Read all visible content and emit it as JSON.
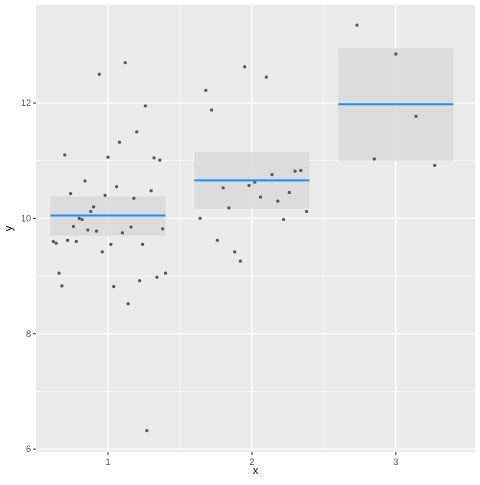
{
  "chart_data": {
    "type": "scatter",
    "xlabel": "x",
    "ylabel": "y",
    "xlim": [
      0.5,
      3.55
    ],
    "ylim": [
      5.95,
      13.7
    ],
    "x_ticks": [
      1,
      2,
      3
    ],
    "x_tick_labels": [
      "1",
      "2",
      "3"
    ],
    "y_ticks": [
      6,
      8,
      10,
      12
    ],
    "y_tick_labels": [
      "6",
      "8",
      "10",
      "12"
    ],
    "grid": true,
    "background": "#ebebeb",
    "grid_color": "#ffffff",
    "point_color": "#595959",
    "line_color": "#1f8ff2",
    "band_color": "#d9d9d9",
    "groups": [
      {
        "x": 1,
        "mean": 10.05,
        "ci_low": 9.7,
        "ci_high": 10.38,
        "x_start": 0.6,
        "x_end": 1.4
      },
      {
        "x": 2,
        "mean": 10.66,
        "ci_low": 10.17,
        "ci_high": 11.15,
        "x_start": 1.6,
        "x_end": 2.4
      },
      {
        "x": 3,
        "mean": 11.98,
        "ci_low": 11.0,
        "ci_high": 12.95,
        "x_start": 2.6,
        "x_end": 3.4
      }
    ],
    "points": [
      {
        "x": 0.62,
        "y": 9.6
      },
      {
        "x": 0.64,
        "y": 9.57
      },
      {
        "x": 0.66,
        "y": 9.05
      },
      {
        "x": 0.68,
        "y": 8.83
      },
      {
        "x": 0.7,
        "y": 11.1
      },
      {
        "x": 0.72,
        "y": 9.62
      },
      {
        "x": 0.74,
        "y": 10.43
      },
      {
        "x": 0.76,
        "y": 9.86
      },
      {
        "x": 0.78,
        "y": 9.6
      },
      {
        "x": 0.8,
        "y": 10.0
      },
      {
        "x": 0.82,
        "y": 9.98
      },
      {
        "x": 0.84,
        "y": 10.65
      },
      {
        "x": 0.86,
        "y": 9.8
      },
      {
        "x": 0.88,
        "y": 10.12
      },
      {
        "x": 0.9,
        "y": 10.2
      },
      {
        "x": 0.92,
        "y": 9.78
      },
      {
        "x": 0.94,
        "y": 12.5
      },
      {
        "x": 0.96,
        "y": 9.42
      },
      {
        "x": 0.98,
        "y": 10.4
      },
      {
        "x": 1.0,
        "y": 11.06
      },
      {
        "x": 1.02,
        "y": 9.55
      },
      {
        "x": 1.04,
        "y": 8.82
      },
      {
        "x": 1.06,
        "y": 10.55
      },
      {
        "x": 1.08,
        "y": 11.32
      },
      {
        "x": 1.1,
        "y": 9.75
      },
      {
        "x": 1.12,
        "y": 12.7
      },
      {
        "x": 1.14,
        "y": 8.52
      },
      {
        "x": 1.16,
        "y": 9.85
      },
      {
        "x": 1.18,
        "y": 10.35
      },
      {
        "x": 1.2,
        "y": 11.5
      },
      {
        "x": 1.22,
        "y": 8.92
      },
      {
        "x": 1.24,
        "y": 9.55
      },
      {
        "x": 1.26,
        "y": 11.95
      },
      {
        "x": 1.27,
        "y": 6.32
      },
      {
        "x": 1.3,
        "y": 10.48
      },
      {
        "x": 1.32,
        "y": 11.05
      },
      {
        "x": 1.34,
        "y": 8.98
      },
      {
        "x": 1.36,
        "y": 11.01
      },
      {
        "x": 1.38,
        "y": 9.82
      },
      {
        "x": 1.4,
        "y": 9.05
      },
      {
        "x": 1.64,
        "y": 10.0
      },
      {
        "x": 1.68,
        "y": 12.22
      },
      {
        "x": 1.72,
        "y": 11.88
      },
      {
        "x": 1.76,
        "y": 9.62
      },
      {
        "x": 1.8,
        "y": 10.53
      },
      {
        "x": 1.84,
        "y": 10.18
      },
      {
        "x": 1.88,
        "y": 9.42
      },
      {
        "x": 1.92,
        "y": 9.26
      },
      {
        "x": 1.95,
        "y": 12.63
      },
      {
        "x": 1.98,
        "y": 10.57
      },
      {
        "x": 2.02,
        "y": 10.63
      },
      {
        "x": 2.06,
        "y": 10.37
      },
      {
        "x": 2.1,
        "y": 12.45
      },
      {
        "x": 2.14,
        "y": 10.76
      },
      {
        "x": 2.18,
        "y": 10.3
      },
      {
        "x": 2.22,
        "y": 9.98
      },
      {
        "x": 2.26,
        "y": 10.45
      },
      {
        "x": 2.3,
        "y": 10.82
      },
      {
        "x": 2.34,
        "y": 10.83
      },
      {
        "x": 2.38,
        "y": 10.12
      },
      {
        "x": 2.73,
        "y": 13.35
      },
      {
        "x": 2.85,
        "y": 11.03
      },
      {
        "x": 3.0,
        "y": 12.85
      },
      {
        "x": 3.14,
        "y": 11.77
      },
      {
        "x": 3.27,
        "y": 10.92
      }
    ]
  }
}
